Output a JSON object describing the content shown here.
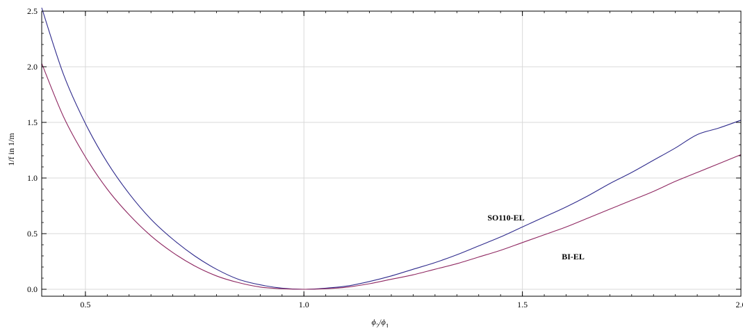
{
  "chart_data": {
    "type": "line",
    "title": "",
    "xlabel_parts": {
      "phi": "ϕ",
      "sub2": "2",
      "slash": "/",
      "sub1": "1"
    },
    "ylabel": "1/f in 1/m",
    "xlim": [
      0.4,
      2.0
    ],
    "ylim": [
      0.0,
      2.5
    ],
    "xticks": [
      0.5,
      1.0,
      1.5,
      2.0
    ],
    "xtick_labels": [
      "0.5",
      "1.0",
      "1.5",
      "2.0"
    ],
    "yticks": [
      0.0,
      0.5,
      1.0,
      1.5,
      2.0,
      2.5
    ],
    "ytick_labels": [
      "0.0",
      "0.5",
      "1.0",
      "1.5",
      "2.0",
      "2.5"
    ],
    "grid": true,
    "series": [
      {
        "name": "SO110-EL",
        "color": "#2e2a8c",
        "x": [
          0.4,
          0.45,
          0.5,
          0.55,
          0.6,
          0.65,
          0.7,
          0.75,
          0.8,
          0.85,
          0.9,
          0.95,
          1.0,
          1.05,
          1.1,
          1.15,
          1.2,
          1.25,
          1.3,
          1.35,
          1.4,
          1.45,
          1.5,
          1.55,
          1.6,
          1.65,
          1.7,
          1.75,
          1.8,
          1.85,
          1.9,
          1.95,
          2.0
        ],
        "values": [
          2.53,
          1.93,
          1.49,
          1.14,
          0.86,
          0.63,
          0.45,
          0.3,
          0.18,
          0.09,
          0.04,
          0.01,
          0.0,
          0.01,
          0.03,
          0.07,
          0.12,
          0.18,
          0.24,
          0.31,
          0.39,
          0.47,
          0.56,
          0.65,
          0.74,
          0.84,
          0.95,
          1.05,
          1.16,
          1.27,
          1.39,
          1.45,
          1.52
        ]
      },
      {
        "name": "BI-EL",
        "color": "#8e2660",
        "x": [
          0.4,
          0.45,
          0.5,
          0.55,
          0.6,
          0.65,
          0.7,
          0.75,
          0.8,
          0.85,
          0.9,
          0.95,
          1.0,
          1.05,
          1.1,
          1.15,
          1.2,
          1.25,
          1.3,
          1.35,
          1.4,
          1.45,
          1.5,
          1.55,
          1.6,
          1.65,
          1.7,
          1.75,
          1.8,
          1.85,
          1.9,
          1.95,
          2.0
        ],
        "values": [
          2.03,
          1.55,
          1.19,
          0.9,
          0.67,
          0.48,
          0.33,
          0.21,
          0.12,
          0.06,
          0.02,
          0.005,
          0.0,
          0.005,
          0.02,
          0.05,
          0.09,
          0.13,
          0.18,
          0.23,
          0.29,
          0.35,
          0.42,
          0.49,
          0.56,
          0.64,
          0.72,
          0.8,
          0.88,
          0.97,
          1.05,
          1.13,
          1.21
        ]
      }
    ],
    "annotations": [
      {
        "text": "SO110-EL",
        "x": 1.42,
        "y": 0.62
      },
      {
        "text": "BI-EL",
        "x": 1.59,
        "y": 0.27
      }
    ]
  }
}
